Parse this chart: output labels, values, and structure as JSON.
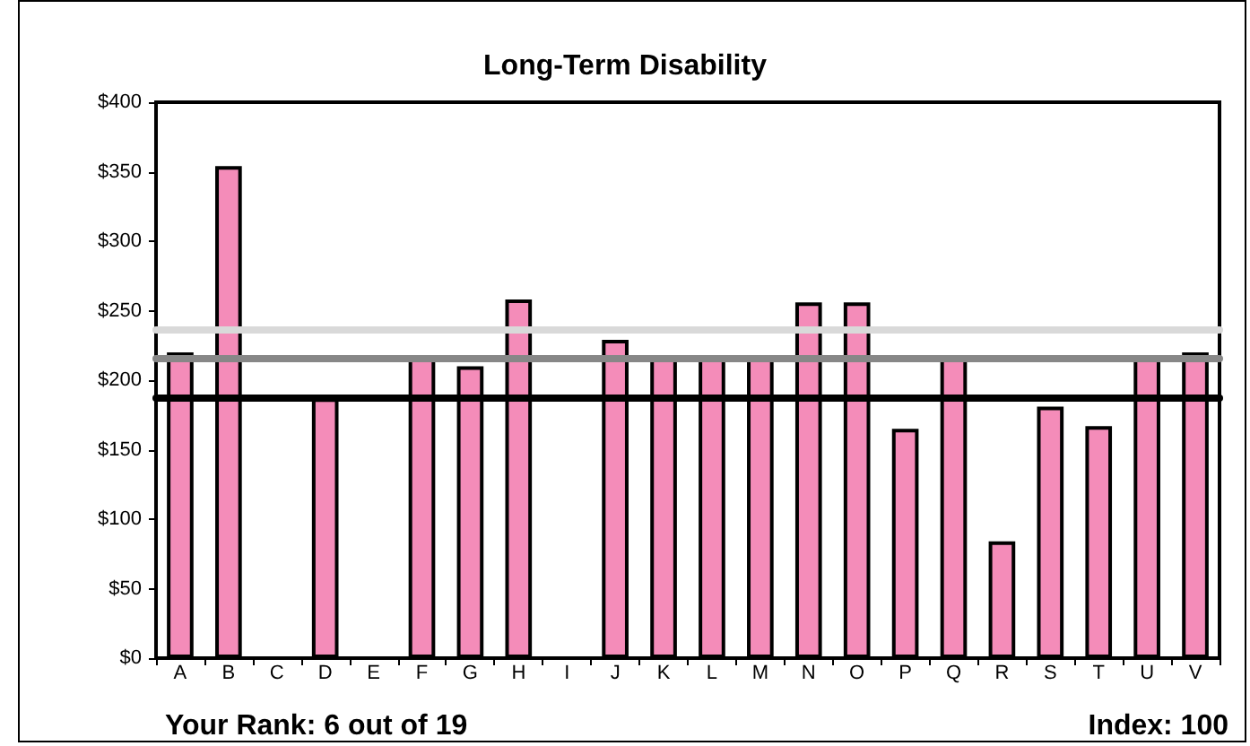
{
  "chart_data": {
    "type": "bar",
    "title": "Long-Term Disability",
    "categories": [
      "A",
      "B",
      "C",
      "D",
      "E",
      "F",
      "G",
      "H",
      "I",
      "J",
      "K",
      "L",
      "M",
      "N",
      "O",
      "P",
      "Q",
      "R",
      "S",
      "T",
      "U",
      "V"
    ],
    "values": [
      220,
      354,
      null,
      187,
      null,
      216,
      210,
      258,
      null,
      229,
      216,
      216,
      216,
      256,
      256,
      165,
      216,
      84,
      181,
      167,
      216,
      220
    ],
    "color": "#f48cb9",
    "ylim": [
      0,
      400
    ],
    "yticks": [
      {
        "value": 0,
        "label": "$0"
      },
      {
        "value": 50,
        "label": "$50"
      },
      {
        "value": 100,
        "label": "$100"
      },
      {
        "value": 150,
        "label": "$150"
      },
      {
        "value": 200,
        "label": "$200"
      },
      {
        "value": 250,
        "label": "$250"
      },
      {
        "value": 300,
        "label": "$300"
      },
      {
        "value": 350,
        "label": "$350"
      },
      {
        "value": 400,
        "label": "$400"
      }
    ],
    "grid": false,
    "ref_lines": [
      {
        "axis": "y",
        "value": 236,
        "label": null,
        "color": "#d9d9d9"
      },
      {
        "axis": "y",
        "value": 216,
        "label": null,
        "color": "#878787"
      },
      {
        "axis": "y",
        "value": 188,
        "label": null,
        "color": "#000000"
      }
    ],
    "annotations": [
      "Your Rank: 6 out of 19",
      "Index: 100"
    ]
  }
}
